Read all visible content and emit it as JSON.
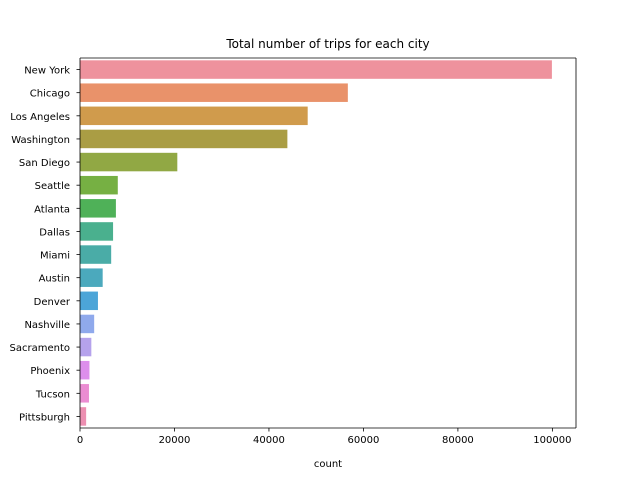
{
  "chart_data": {
    "type": "bar",
    "orientation": "horizontal",
    "title": "Total number of trips for each city",
    "xlabel": "count",
    "ylabel": "",
    "categories": [
      "New York",
      "Chicago",
      "Los Angeles",
      "Washington",
      "San Diego",
      "Seattle",
      "Atlanta",
      "Dallas",
      "Miami",
      "Austin",
      "Denver",
      "Nashville",
      "Sacramento",
      "Phoenix",
      "Tucson",
      "Pittsburgh"
    ],
    "values": [
      99900,
      56700,
      48200,
      43900,
      20600,
      8000,
      7600,
      7000,
      6600,
      4800,
      3800,
      3000,
      2400,
      2000,
      1900,
      1300
    ],
    "xlim": [
      0,
      105000
    ],
    "xticks": [
      0,
      20000,
      40000,
      60000,
      80000,
      100000
    ],
    "colors": [
      "#ee929d",
      "#e9926a",
      "#d09b4c",
      "#aa9d44",
      "#91a844",
      "#76b043",
      "#4fb158",
      "#4ab08e",
      "#4aaca7",
      "#4ba9bd",
      "#4ca5d8",
      "#8fa9ec",
      "#b5a2ec",
      "#dd8eec",
      "#eb8dd2",
      "#ec8fb1"
    ],
    "grid": false,
    "legend": false
  }
}
